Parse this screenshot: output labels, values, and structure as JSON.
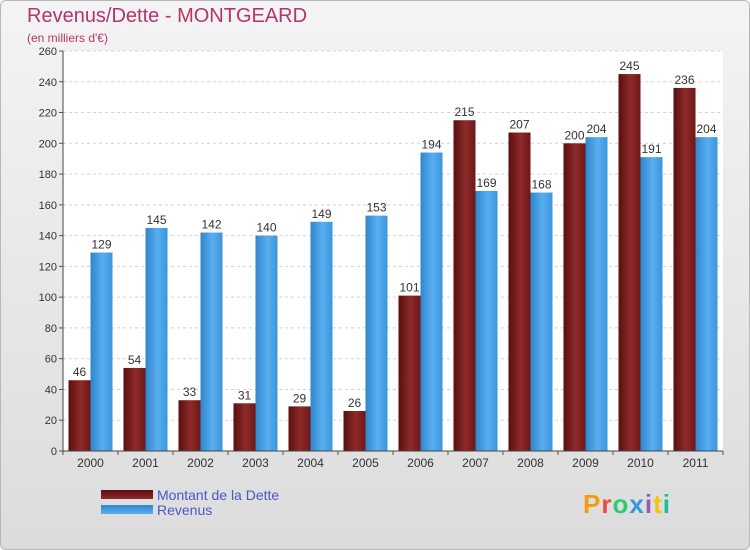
{
  "title": "Revenus/Dette - MONTGEARD",
  "subtitle": "(en milliers d'€)",
  "logo": {
    "text": "Proxiti",
    "colors": [
      "#f39c12",
      "#e74c3c",
      "#2ecc71",
      "#3498db",
      "#9b59b6",
      "#f1c40f",
      "#1abc9c"
    ]
  },
  "colors": {
    "dette": "#7b1c1c",
    "revenus": "#3d9be3",
    "title": "#b5346a",
    "legend_text": "#4a56c8"
  },
  "chart_data": {
    "type": "bar",
    "title": "Revenus/Dette - MONTGEARD",
    "subtitle": "(en milliers d'€)",
    "categories": [
      "2000",
      "2001",
      "2002",
      "2003",
      "2004",
      "2005",
      "2006",
      "2007",
      "2008",
      "2009",
      "2010",
      "2011"
    ],
    "series": [
      {
        "name": "Montant de la Dette",
        "values": [
          46,
          54,
          33,
          31,
          29,
          26,
          101,
          215,
          207,
          200,
          245,
          236
        ]
      },
      {
        "name": "Revenus",
        "values": [
          129,
          145,
          142,
          140,
          149,
          153,
          194,
          169,
          168,
          204,
          191,
          204
        ]
      }
    ],
    "ylim": [
      0,
      260
    ],
    "yticks": [
      0,
      20,
      40,
      60,
      80,
      100,
      120,
      140,
      160,
      180,
      200,
      220,
      240,
      260
    ],
    "grid": true,
    "legend_position": "bottom-left"
  }
}
